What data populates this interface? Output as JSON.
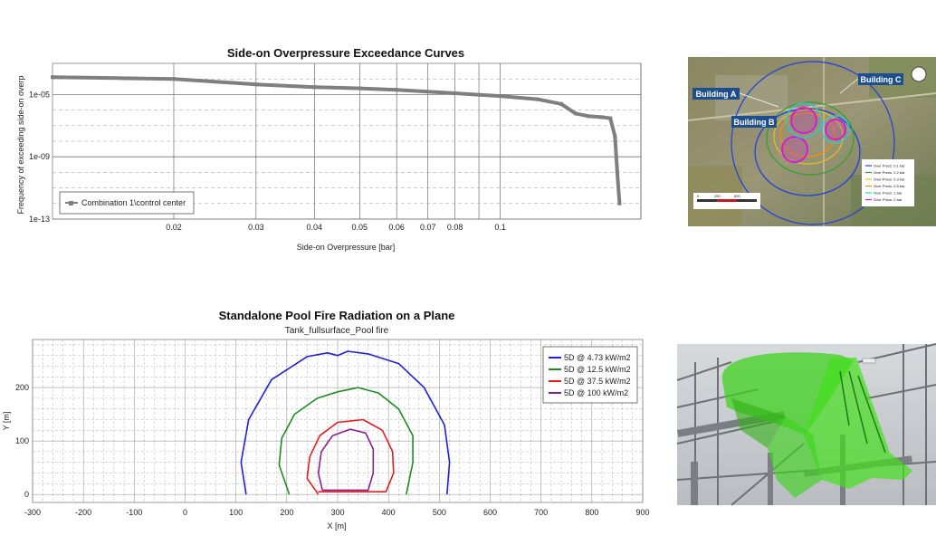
{
  "chart_data": [
    {
      "type": "line",
      "title": "Side-on Overpressure Exceedance Curves",
      "xlabel": "Side-on Overpressure [bar]",
      "ylabel": "Frequency of exceeding side-on overp",
      "xscale": "log",
      "yscale": "log",
      "xlim": [
        0.011,
        0.2
      ],
      "ylim": [
        1e-13,
        0.001
      ],
      "x_ticks": [
        {
          "v": 0.02,
          "label": "0.02"
        },
        {
          "v": 0.03,
          "label": "0.03"
        },
        {
          "v": 0.04,
          "label": "0.04"
        },
        {
          "v": 0.05,
          "label": "0.05"
        },
        {
          "v": 0.06,
          "label": "0.06"
        },
        {
          "v": 0.07,
          "label": "0.07"
        },
        {
          "v": 0.08,
          "label": "0.08"
        },
        {
          "v": 0.1,
          "label": "0.1"
        }
      ],
      "y_ticks": [
        {
          "v": 1e-05,
          "label": "1e-05"
        },
        {
          "v": 1e-09,
          "label": "1e-09"
        },
        {
          "v": 1e-13,
          "label": "1e-13"
        }
      ],
      "legend_position": "bottom-left",
      "grid": true,
      "series": [
        {
          "name": "Combination 1\\control center",
          "color": "#7f7f7f",
          "points": [
            [
              0.011,
              0.00013
            ],
            [
              0.02,
              0.0001
            ],
            [
              0.03,
              4.5e-05
            ],
            [
              0.04,
              3e-05
            ],
            [
              0.05,
              2.5e-05
            ],
            [
              0.06,
              2e-05
            ],
            [
              0.08,
              1.2e-05
            ],
            [
              0.1,
              8e-06
            ],
            [
              0.12,
              5e-06
            ],
            [
              0.135,
              2.5e-06
            ],
            [
              0.145,
              6e-07
            ],
            [
              0.155,
              4e-07
            ],
            [
              0.165,
              3.5e-07
            ],
            [
              0.172,
              3e-07
            ],
            [
              0.176,
              2e-08
            ],
            [
              0.178,
              1e-10
            ],
            [
              0.18,
              1e-12
            ]
          ]
        }
      ]
    },
    {
      "type": "line",
      "title": "Standalone Pool Fire Radiation on a Plane",
      "subtitle": "Tank_fullsurface_Pool fire",
      "xlabel": "X [m]",
      "ylabel": "Y [m]",
      "xlim": [
        -300,
        900
      ],
      "ylim": [
        -15,
        290
      ],
      "x_ticks": [
        -300,
        -200,
        -100,
        0,
        100,
        200,
        300,
        400,
        500,
        600,
        700,
        800,
        900
      ],
      "y_ticks": [
        0,
        100,
        200
      ],
      "legend_position": "top-right",
      "grid": true,
      "series": [
        {
          "name": "5D @ 4.73 kW/m2",
          "color": "#1f1fdc",
          "points": [
            [
              120,
              0
            ],
            [
              110,
              60
            ],
            [
              125,
              140
            ],
            [
              170,
              215
            ],
            [
              240,
              258
            ],
            [
              280,
              265
            ],
            [
              300,
              260
            ],
            [
              320,
              268
            ],
            [
              360,
              263
            ],
            [
              420,
              245
            ],
            [
              470,
              200
            ],
            [
              510,
              130
            ],
            [
              520,
              60
            ],
            [
              515,
              0
            ]
          ]
        },
        {
          "name": "5D @ 12.5 kW/m2",
          "color": "#1e8c1e",
          "points": [
            [
              205,
              0
            ],
            [
              185,
              55
            ],
            [
              190,
              105
            ],
            [
              215,
              150
            ],
            [
              260,
              180
            ],
            [
              300,
              192
            ],
            [
              340,
              200
            ],
            [
              380,
              190
            ],
            [
              420,
              160
            ],
            [
              448,
              110
            ],
            [
              448,
              60
            ],
            [
              435,
              0
            ]
          ]
        },
        {
          "name": "5D @ 37.5 kW/m2",
          "color": "#e51c1c",
          "points": [
            [
              262,
              0
            ],
            [
              240,
              30
            ],
            [
              245,
              70
            ],
            [
              265,
              110
            ],
            [
              300,
              135
            ],
            [
              350,
              140
            ],
            [
              388,
              120
            ],
            [
              408,
              80
            ],
            [
              410,
              40
            ],
            [
              395,
              5
            ],
            [
              262,
              5
            ]
          ]
        },
        {
          "name": "5D @ 100 kW/m2",
          "color": "#8c1f8c",
          "points": [
            [
              270,
              8
            ],
            [
              262,
              40
            ],
            [
              268,
              80
            ],
            [
              290,
              110
            ],
            [
              325,
              122
            ],
            [
              355,
              115
            ],
            [
              370,
              85
            ],
            [
              370,
              40
            ],
            [
              360,
              8
            ],
            [
              270,
              8
            ]
          ]
        }
      ]
    }
  ],
  "site_map": {
    "building_labels": [
      "Building A",
      "Building B",
      "Building C"
    ],
    "legend_items": [
      {
        "label": "Over Press. 0.1 bar",
        "color": "#1f3fdc"
      },
      {
        "label": "Over Press. 0.2 bar",
        "color": "#2ca02c"
      },
      {
        "label": "Over Press. 0.3 bar",
        "color": "#e5c31c"
      },
      {
        "label": "Over Press. 0.5 bar",
        "color": "#ff8c00"
      },
      {
        "label": "Over Press. 1 bar",
        "color": "#1fd0e0"
      },
      {
        "label": "Over Press. 2 bar",
        "color": "#d01fd0"
      }
    ],
    "scale_labels": [
      "0",
      "250",
      "500"
    ]
  },
  "render_3d": {}
}
